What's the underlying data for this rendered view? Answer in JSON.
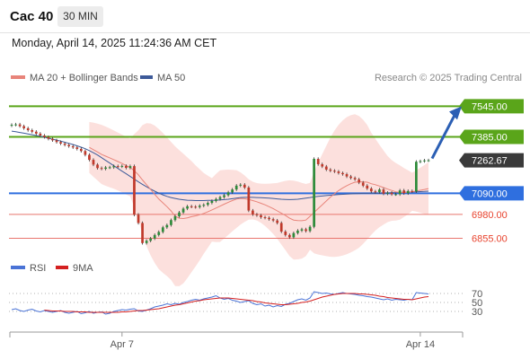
{
  "header": {
    "instrument": "Cac 40",
    "timeframe": "30 MIN",
    "datetime": "Monday, April 14, 2025 11:24:36 AM CET"
  },
  "legend": {
    "ma20_label": "MA 20 + Bollinger Bands",
    "ma50_label": "MA 50",
    "credit": "Research © 2025 Trading Central",
    "rsi_label": "RSI",
    "ma9_label": "9MA"
  },
  "colors": {
    "candle_up": "#2e8b3a",
    "candle_down": "#c0392b",
    "ma20": "#e8847a",
    "ma50": "#3d5a99",
    "bollinger_fill": "#fbd5d2",
    "resistance": "#5aa51a",
    "support": "#e8766e",
    "pivot": "#2f6fdf",
    "current": "#3a3a3a",
    "arrow": "#2b5fb4",
    "rsi": "#4a73d6",
    "rsi_ma": "#d42020"
  },
  "chart_data": [
    {
      "type": "candlestick",
      "title": "Cac 40",
      "timeframe": "30 MIN",
      "x_ticks": [
        "Apr 7",
        "Apr 14"
      ],
      "ylim": [
        6740,
        7650
      ],
      "series": [
        {
          "name": "MA 20 + Bollinger Bands",
          "role": "ma20"
        },
        {
          "name": "MA 50",
          "role": "ma50"
        }
      ],
      "levels": [
        {
          "value": 7545.0,
          "label": "7545.00",
          "kind": "resistance"
        },
        {
          "value": 7385.0,
          "label": "7385.00",
          "kind": "resistance"
        },
        {
          "value": 7262.67,
          "label": "7262.67",
          "kind": "current"
        },
        {
          "value": 7090.0,
          "label": "7090.00",
          "kind": "pivot"
        },
        {
          "value": 6980.0,
          "label": "6980.00",
          "kind": "support"
        },
        {
          "value": 6855.0,
          "label": "6855.00",
          "kind": "support"
        }
      ],
      "close": [
        7448,
        7450,
        7441,
        7430,
        7420,
        7412,
        7402,
        7392,
        7384,
        7375,
        7367,
        7358,
        7350,
        7343,
        7336,
        7330,
        7322,
        7311,
        7291,
        7265,
        7240,
        7222,
        7218,
        7225,
        7226,
        7232,
        7230,
        7233,
        7223,
        7232,
        6978,
        6935,
        6830,
        6842,
        6854,
        6872,
        6888,
        6912,
        6924,
        6950,
        6970,
        6990,
        7010,
        7022,
        7020,
        7018,
        7025,
        7030,
        7040,
        7050,
        7060,
        7070,
        7080,
        7095,
        7110,
        7130,
        7135,
        7120,
        7000,
        6980,
        6975,
        6965,
        6962,
        6955,
        6948,
        6935,
        6890,
        6872,
        6860,
        6882,
        6895,
        6902,
        6893,
        6915,
        7270,
        7242,
        7230,
        7214,
        7208,
        7204,
        7196,
        7190,
        7178,
        7170,
        7163,
        7146,
        7130,
        7115,
        7100,
        7096,
        7110,
        7088,
        7093,
        7085,
        7085,
        7105,
        7090,
        7102,
        7100,
        7255,
        7258,
        7262,
        7262.67
      ],
      "ma20": [
        null,
        null,
        null,
        null,
        null,
        null,
        null,
        null,
        null,
        null,
        null,
        null,
        null,
        null,
        null,
        null,
        null,
        null,
        null,
        7330,
        7318,
        7306,
        7293,
        7284,
        7275,
        7266,
        7256,
        7246,
        7235,
        7225,
        7208,
        7187,
        7160,
        7135,
        7110,
        7085,
        7060,
        7040,
        7020,
        6998,
        6970,
        6960,
        6958,
        6962,
        6968,
        6972,
        6978,
        6985,
        6994,
        7003,
        7013,
        7023,
        7033,
        7043,
        7052,
        7060,
        7063,
        7062,
        7058,
        7052,
        7046,
        7038,
        7030,
        7020,
        7010,
        6998,
        6986,
        6974,
        6960,
        6950,
        6948,
        6947,
        6950,
        6970,
        6990,
        7010,
        7030,
        7050,
        7070,
        7088,
        7104,
        7118,
        7130,
        7140,
        7148,
        7150,
        7150,
        7148,
        7140,
        7135,
        7128,
        7120,
        7112,
        7105,
        7098,
        7094,
        7094,
        7095,
        7098,
        7102,
        7106,
        7110,
        7115
      ],
      "ma50": [
        7415,
        7412,
        7408,
        7404,
        7400,
        7396,
        7392,
        7388,
        7383,
        7378,
        7373,
        7368,
        7363,
        7357,
        7351,
        7345,
        7338,
        7331,
        7323,
        7313,
        7302,
        7290,
        7276,
        7262,
        7248,
        7234,
        7220,
        7206,
        7192,
        7178,
        7164,
        7150,
        7137,
        7124,
        7112,
        7101,
        7091,
        7082,
        7074,
        7068,
        7063,
        7059,
        7056,
        7054,
        7053,
        7052,
        7052,
        7052,
        7053,
        7053,
        7054,
        7055,
        7057,
        7059,
        7062,
        7065,
        7068,
        7069,
        7069,
        7069,
        7068,
        7067,
        7066,
        7065,
        7063,
        7061,
        7059,
        7058,
        7057,
        7058,
        7059,
        7062,
        7065,
        7068,
        7071,
        7074,
        7076,
        7078,
        7080,
        7082,
        7084,
        7085,
        7086,
        7087,
        7088,
        7089,
        7090,
        7090,
        7091,
        7091,
        7091,
        7092,
        7092,
        7093,
        7093,
        7094,
        7095,
        7096,
        7097,
        7098,
        7099,
        7100,
        7101
      ]
    },
    {
      "type": "line",
      "title": "RSI",
      "y_ticks": [
        30,
        50,
        70
      ],
      "ylim": [
        0,
        100
      ],
      "series": [
        {
          "name": "RSI",
          "values": [
            34,
            36,
            32,
            30,
            33,
            35,
            31,
            29,
            32,
            30,
            28,
            30,
            32,
            28,
            26,
            28,
            30,
            25,
            27,
            30,
            26,
            28,
            29,
            24,
            26,
            30,
            32,
            34,
            33,
            35,
            36,
            31,
            30,
            33,
            36,
            40,
            42,
            44,
            47,
            45,
            48,
            46,
            50,
            52,
            55,
            57,
            55,
            58,
            60,
            62,
            65,
            60,
            57,
            59,
            55,
            53,
            50,
            52,
            54,
            48,
            45,
            47,
            42,
            44,
            40,
            43,
            41,
            46,
            48,
            52,
            56,
            58,
            55,
            60,
            74,
            72,
            70,
            71,
            69,
            68,
            70,
            72,
            70,
            69,
            68,
            66,
            65,
            63,
            62,
            60,
            58,
            56,
            58,
            55,
            57,
            56,
            55,
            57,
            56,
            72,
            71,
            70,
            69
          ]
        },
        {
          "name": "9MA",
          "values": [
            null,
            null,
            null,
            null,
            null,
            null,
            null,
            null,
            33,
            32,
            31,
            31,
            31,
            30,
            30,
            30,
            29,
            29,
            29,
            28,
            28,
            28,
            28,
            28,
            28,
            28,
            28,
            29,
            29,
            30,
            31,
            32,
            32,
            33,
            34,
            35,
            36,
            38,
            40,
            42,
            44,
            45,
            47,
            49,
            51,
            53,
            54,
            56,
            57,
            58,
            59,
            60,
            60,
            60,
            59,
            58,
            57,
            56,
            55,
            54,
            52,
            51,
            49,
            48,
            47,
            46,
            45,
            45,
            46,
            47,
            48,
            50,
            51,
            53,
            56,
            59,
            62,
            64,
            66,
            68,
            69,
            70,
            70,
            70,
            70,
            69,
            69,
            68,
            67,
            66,
            64,
            63,
            61,
            60,
            59,
            58,
            57,
            57,
            56,
            58,
            60,
            62,
            63
          ]
        }
      ]
    }
  ]
}
